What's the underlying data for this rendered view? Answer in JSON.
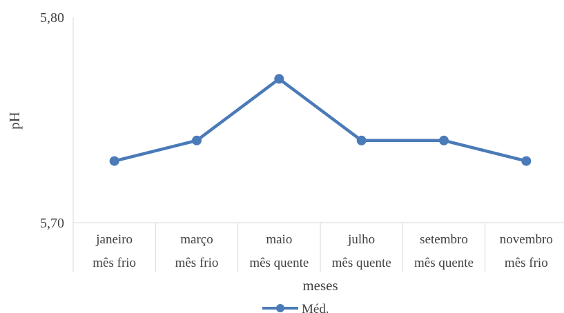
{
  "chart_data": {
    "type": "line",
    "categories": [
      [
        "janeiro",
        "mês frio"
      ],
      [
        "março",
        "mês frio"
      ],
      [
        "maio",
        "mês quente"
      ],
      [
        "julho",
        "mês quente"
      ],
      [
        "setembro",
        "mês quente"
      ],
      [
        "novembro",
        "mês frio"
      ]
    ],
    "series": [
      {
        "name": "Méd.",
        "values": [
          5.73,
          5.74,
          5.77,
          5.74,
          5.74,
          5.73
        ]
      }
    ],
    "xlabel": "meses",
    "ylabel": "pH",
    "ylim": [
      5.7,
      5.8
    ],
    "yticks": [
      "5,70",
      "5,80"
    ],
    "grid": false,
    "legend": "bottom",
    "color": "#4a7ab8"
  }
}
